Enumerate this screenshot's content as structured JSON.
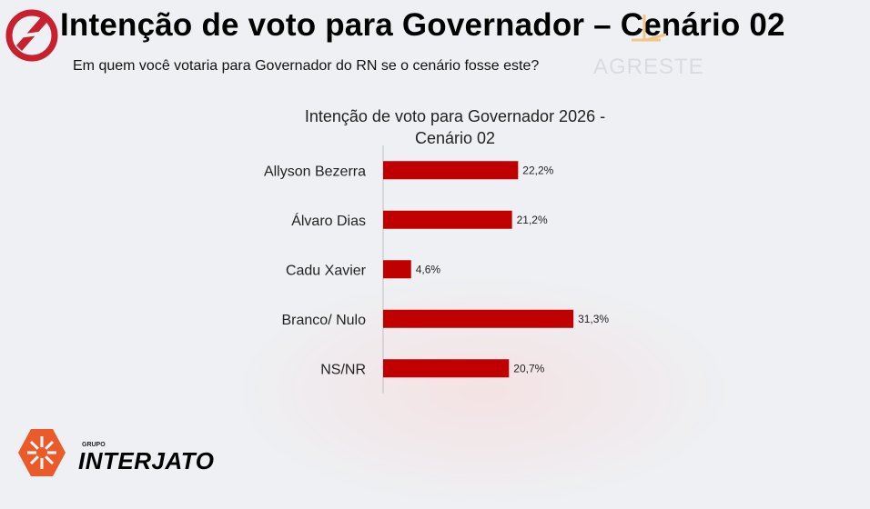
{
  "header": {
    "title": "Intenção de voto para Governador – Cenário 02",
    "subtitle": "Em quem você votaria para Governador do RN se o cenário fosse este?",
    "watermark": "AGRESTE"
  },
  "brand": {
    "group": "GRUPO",
    "name": "INTERJATO"
  },
  "chart_data": {
    "type": "bar",
    "orientation": "horizontal",
    "title": "Intenção de voto para Governador 2026 - Cenário 02",
    "title_lines": [
      "Intenção de voto para Governador 2026 -",
      "Cenário 02"
    ],
    "categories": [
      "Allyson Bezerra",
      "Álvaro Dias",
      "Cadu Xavier",
      "Branco/ Nulo",
      "NS/NR"
    ],
    "values": [
      22.2,
      21.2,
      4.6,
      31.3,
      20.7
    ],
    "labels": [
      "22,2%",
      "21,2%",
      "4,6%",
      "31,3%",
      "20,7%"
    ],
    "unit": "%",
    "bar_color": "#c00000",
    "grid": false,
    "legend": "none"
  }
}
